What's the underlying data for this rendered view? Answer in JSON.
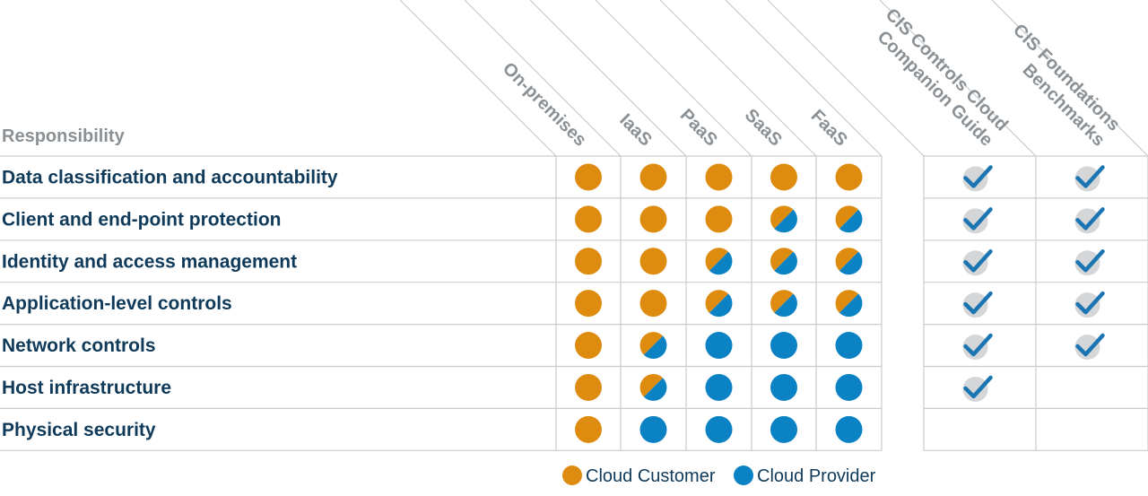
{
  "header": {
    "responsibility": "Responsibility"
  },
  "columns": [
    {
      "label": "On-premises"
    },
    {
      "label": "IaaS"
    },
    {
      "label": "PaaS"
    },
    {
      "label": "SaaS"
    },
    {
      "label": "FaaS"
    }
  ],
  "cis_columns": [
    {
      "lines": [
        "CIS Controls Cloud",
        "Companion Guide"
      ]
    },
    {
      "lines": [
        "CIS Foundations",
        "Benchmarks"
      ]
    }
  ],
  "rows": [
    {
      "label": "Data classification and accountability",
      "cells": [
        "customer",
        "customer",
        "customer",
        "customer",
        "customer"
      ],
      "checks": [
        true,
        true
      ]
    },
    {
      "label": "Client and end-point protection",
      "cells": [
        "customer",
        "customer",
        "customer",
        "shared",
        "shared"
      ],
      "checks": [
        true,
        true
      ]
    },
    {
      "label": "Identity and access management",
      "cells": [
        "customer",
        "customer",
        "shared",
        "shared",
        "shared"
      ],
      "checks": [
        true,
        true
      ]
    },
    {
      "label": "Application-level controls",
      "cells": [
        "customer",
        "customer",
        "shared",
        "shared",
        "shared"
      ],
      "checks": [
        true,
        true
      ]
    },
    {
      "label": "Network controls",
      "cells": [
        "customer",
        "shared",
        "provider",
        "provider",
        "provider"
      ],
      "checks": [
        true,
        true
      ]
    },
    {
      "label": "Host infrastructure",
      "cells": [
        "customer",
        "shared",
        "provider",
        "provider",
        "provider"
      ],
      "checks": [
        true,
        false
      ]
    },
    {
      "label": "Physical security",
      "cells": [
        "customer",
        "provider",
        "provider",
        "provider",
        "provider"
      ],
      "checks": [
        false,
        false
      ]
    }
  ],
  "legend": [
    {
      "label": "Cloud Customer",
      "color": "#de8c10"
    },
    {
      "label": "Cloud Provider",
      "color": "#0b82c4"
    }
  ]
}
